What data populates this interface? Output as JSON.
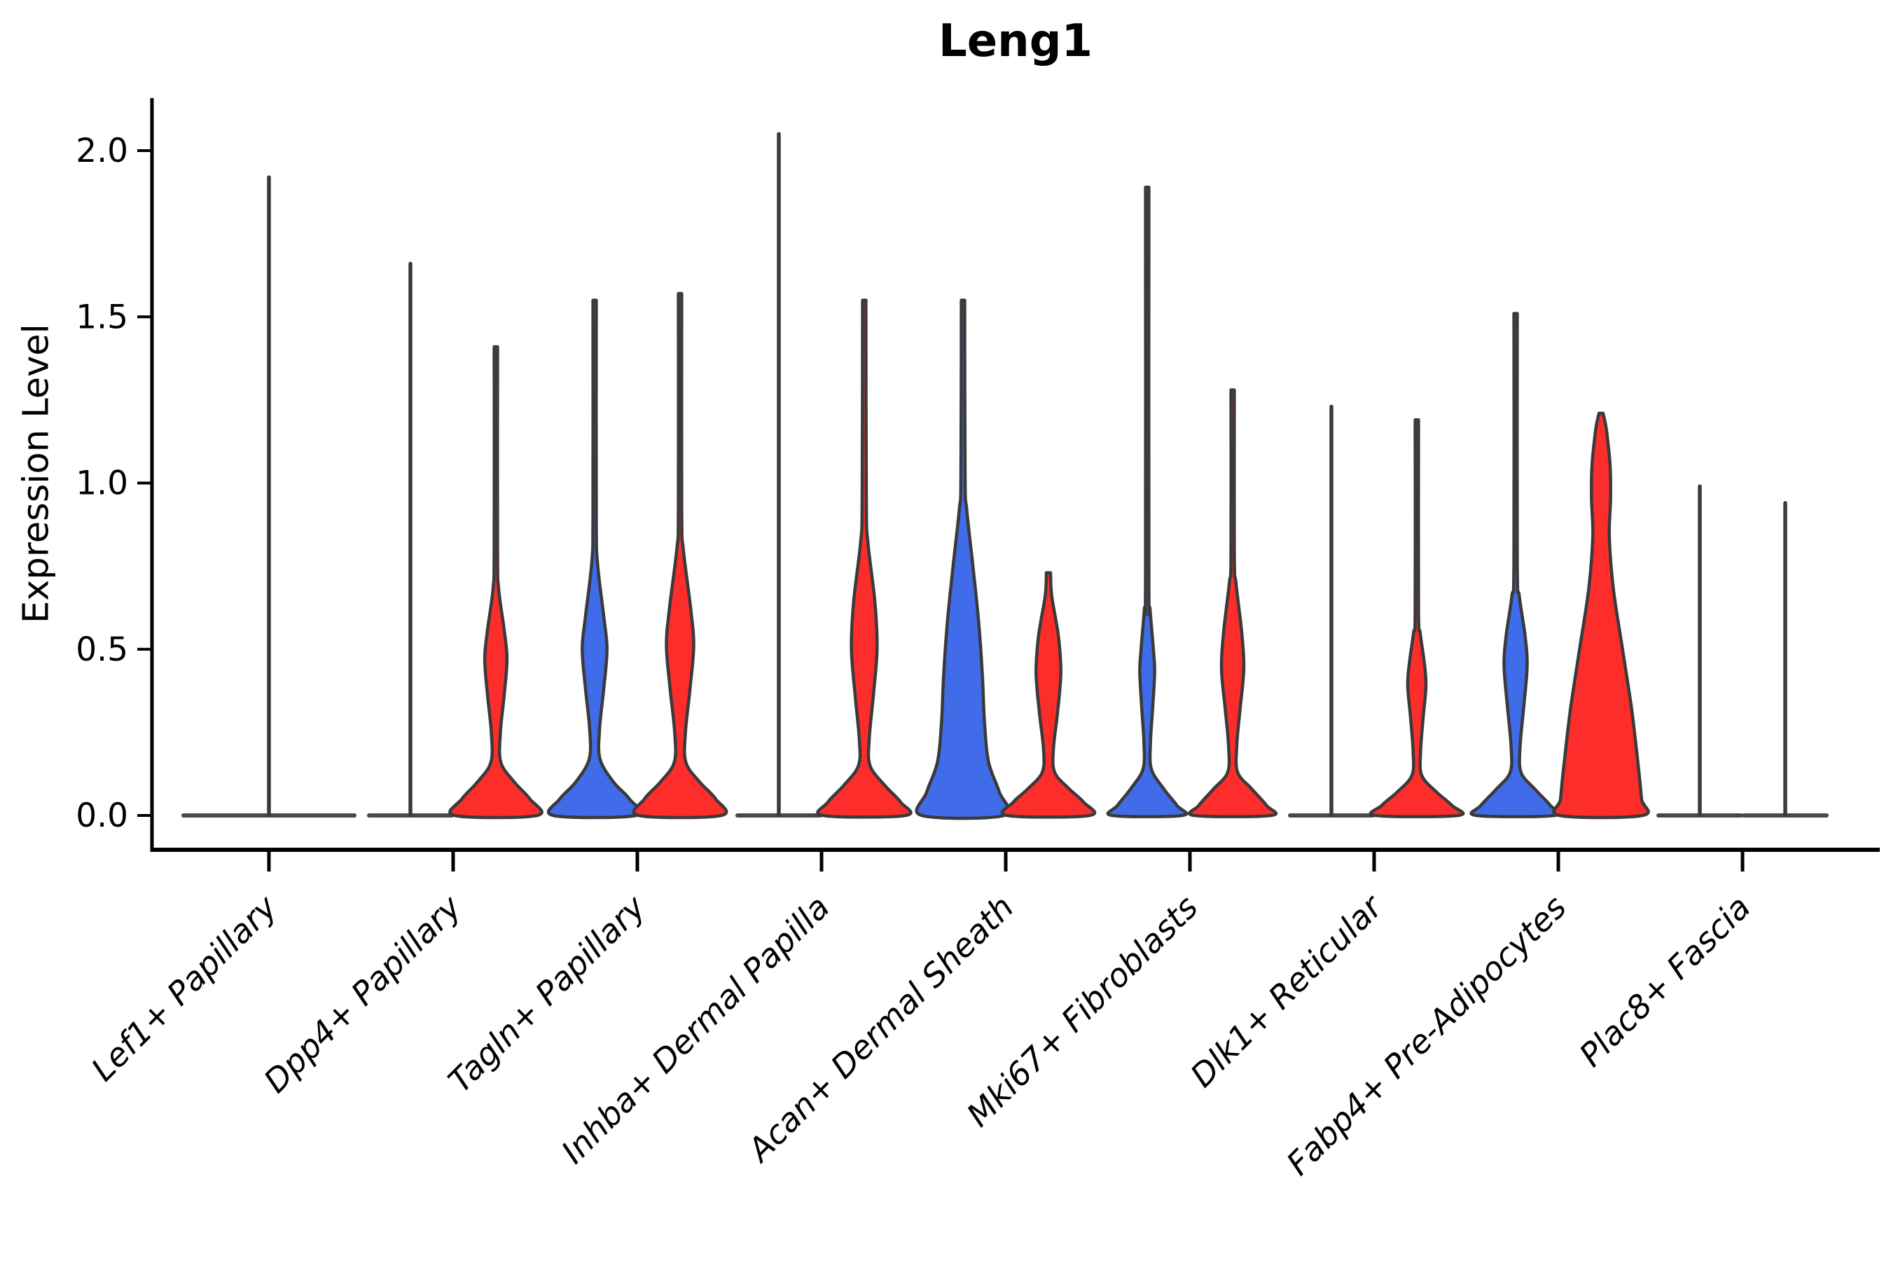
{
  "title": "Leng1",
  "ylabel": "Expression Level",
  "colors": {
    "background": "#ffffff",
    "axis": "#000000",
    "violin_edge": "#3a3a3a",
    "flat_line": "#484848",
    "blue": "#406CE9",
    "red": "#FD2D2B"
  },
  "chart_data": {
    "type": "violin",
    "title": "Leng1",
    "xlabel": "",
    "ylabel": "Expression Level",
    "ylim": [
      -0.1,
      2.1
    ],
    "yticks": [
      0.0,
      0.5,
      1.0,
      1.5,
      2.0
    ],
    "ytick_labels": [
      "0.0",
      "0.5",
      "1.0",
      "1.5",
      "2.0"
    ],
    "grid": false,
    "legend": "none",
    "categories": [
      "Lef1+ Papillary",
      "Dpp4+ Papillary",
      "Tagln+ Papillary",
      "Inhba+ Dermal Papilla",
      "Acan+ Dermal Sheath",
      "Mki67+ Fibroblasts",
      "Dlk1+ Reticular",
      "Fabp4+ Pre-Adipocytes",
      "Plac8+ Fascia"
    ],
    "hue_sides": [
      "left",
      "right"
    ],
    "hue_colors": {
      "left": "#406CE9",
      "right": "#FD2D2B"
    },
    "violins": [
      {
        "category_index": 0,
        "side": "single",
        "color": null,
        "shape": "flat",
        "spike_top": 1.92
      },
      {
        "category_index": 1,
        "side": "left",
        "color": "blue",
        "shape": "flat",
        "spike_top": 1.66
      },
      {
        "category_index": 1,
        "side": "right",
        "color": "red",
        "shape": "body",
        "spike_top": 1.41,
        "profile": [
          [
            1.41,
            0.04
          ],
          [
            0.8,
            0.04
          ],
          [
            0.68,
            0.07
          ],
          [
            0.56,
            0.2
          ],
          [
            0.47,
            0.27
          ],
          [
            0.36,
            0.2
          ],
          [
            0.25,
            0.11
          ],
          [
            0.16,
            0.12
          ],
          [
            0.1,
            0.45
          ],
          [
            0.05,
            0.82
          ],
          [
            0.0,
            1.0
          ]
        ]
      },
      {
        "category_index": 2,
        "side": "left",
        "color": "blue",
        "shape": "body",
        "spike_top": 1.55,
        "profile": [
          [
            1.55,
            0.04
          ],
          [
            0.9,
            0.04
          ],
          [
            0.76,
            0.07
          ],
          [
            0.6,
            0.22
          ],
          [
            0.5,
            0.3
          ],
          [
            0.38,
            0.22
          ],
          [
            0.26,
            0.12
          ],
          [
            0.17,
            0.13
          ],
          [
            0.1,
            0.46
          ],
          [
            0.05,
            0.84
          ],
          [
            0.0,
            1.0
          ]
        ]
      },
      {
        "category_index": 2,
        "side": "right",
        "color": "red",
        "shape": "body",
        "spike_top": 1.57,
        "profile": [
          [
            1.57,
            0.04
          ],
          [
            0.92,
            0.04
          ],
          [
            0.8,
            0.08
          ],
          [
            0.62,
            0.26
          ],
          [
            0.51,
            0.33
          ],
          [
            0.38,
            0.24
          ],
          [
            0.25,
            0.13
          ],
          [
            0.16,
            0.14
          ],
          [
            0.1,
            0.48
          ],
          [
            0.05,
            0.86
          ],
          [
            0.0,
            1.0
          ]
        ]
      },
      {
        "category_index": 3,
        "side": "left",
        "color": "blue",
        "shape": "flat",
        "spike_top": 2.05
      },
      {
        "category_index": 3,
        "side": "right",
        "color": "red",
        "shape": "body",
        "spike_top": 1.55,
        "profile": [
          [
            1.55,
            0.04
          ],
          [
            0.95,
            0.05
          ],
          [
            0.82,
            0.09
          ],
          [
            0.64,
            0.26
          ],
          [
            0.5,
            0.31
          ],
          [
            0.36,
            0.22
          ],
          [
            0.23,
            0.12
          ],
          [
            0.15,
            0.14
          ],
          [
            0.09,
            0.5
          ],
          [
            0.04,
            0.88
          ],
          [
            0.0,
            1.0
          ]
        ]
      },
      {
        "category_index": 4,
        "side": "left",
        "color": "blue",
        "shape": "body",
        "spike_top": 1.55,
        "profile": [
          [
            1.55,
            0.04
          ],
          [
            1.02,
            0.05
          ],
          [
            0.92,
            0.09
          ],
          [
            0.75,
            0.24
          ],
          [
            0.58,
            0.38
          ],
          [
            0.42,
            0.47
          ],
          [
            0.28,
            0.52
          ],
          [
            0.16,
            0.62
          ],
          [
            0.07,
            0.88
          ],
          [
            0.0,
            1.0
          ]
        ]
      },
      {
        "category_index": 4,
        "side": "right",
        "color": "red",
        "shape": "body",
        "spike_top": 0.73,
        "profile": [
          [
            0.73,
            0.05
          ],
          [
            0.66,
            0.08
          ],
          [
            0.54,
            0.24
          ],
          [
            0.43,
            0.3
          ],
          [
            0.31,
            0.22
          ],
          [
            0.2,
            0.12
          ],
          [
            0.13,
            0.15
          ],
          [
            0.08,
            0.5
          ],
          [
            0.04,
            0.85
          ],
          [
            0.0,
            1.0
          ]
        ]
      },
      {
        "category_index": 5,
        "side": "left",
        "color": "blue",
        "shape": "body",
        "spike_top": 1.89,
        "profile": [
          [
            1.89,
            0.04
          ],
          [
            0.72,
            0.04
          ],
          [
            0.62,
            0.07
          ],
          [
            0.5,
            0.15
          ],
          [
            0.43,
            0.18
          ],
          [
            0.32,
            0.13
          ],
          [
            0.22,
            0.08
          ],
          [
            0.14,
            0.1
          ],
          [
            0.08,
            0.4
          ],
          [
            0.03,
            0.72
          ],
          [
            0.0,
            0.85
          ]
        ]
      },
      {
        "category_index": 5,
        "side": "right",
        "color": "red",
        "shape": "body",
        "spike_top": 1.28,
        "profile": [
          [
            1.28,
            0.04
          ],
          [
            0.78,
            0.04
          ],
          [
            0.7,
            0.08
          ],
          [
            0.55,
            0.22
          ],
          [
            0.44,
            0.27
          ],
          [
            0.32,
            0.18
          ],
          [
            0.21,
            0.1
          ],
          [
            0.13,
            0.12
          ],
          [
            0.08,
            0.46
          ],
          [
            0.03,
            0.82
          ],
          [
            0.0,
            0.93
          ]
        ]
      },
      {
        "category_index": 6,
        "side": "left",
        "color": "blue",
        "shape": "flat",
        "spike_top": 1.23
      },
      {
        "category_index": 6,
        "side": "right",
        "color": "red",
        "shape": "body",
        "spike_top": 1.19,
        "profile": [
          [
            1.19,
            0.04
          ],
          [
            0.62,
            0.04
          ],
          [
            0.55,
            0.08
          ],
          [
            0.46,
            0.18
          ],
          [
            0.39,
            0.22
          ],
          [
            0.29,
            0.15
          ],
          [
            0.19,
            0.09
          ],
          [
            0.12,
            0.12
          ],
          [
            0.07,
            0.48
          ],
          [
            0.03,
            0.85
          ],
          [
            0.0,
            1.0
          ]
        ]
      },
      {
        "category_index": 7,
        "side": "left",
        "color": "blue",
        "shape": "body",
        "spike_top": 1.51,
        "profile": [
          [
            1.51,
            0.04
          ],
          [
            0.76,
            0.04
          ],
          [
            0.66,
            0.09
          ],
          [
            0.54,
            0.23
          ],
          [
            0.45,
            0.28
          ],
          [
            0.33,
            0.2
          ],
          [
            0.21,
            0.11
          ],
          [
            0.13,
            0.13
          ],
          [
            0.08,
            0.46
          ],
          [
            0.03,
            0.84
          ],
          [
            0.0,
            0.95
          ]
        ]
      },
      {
        "category_index": 7,
        "side": "right",
        "color": "red",
        "shape": "body",
        "spike_top": 1.21,
        "profile": [
          [
            1.21,
            0.05
          ],
          [
            1.16,
            0.13
          ],
          [
            1.05,
            0.22
          ],
          [
            0.95,
            0.23
          ],
          [
            0.84,
            0.2
          ],
          [
            0.68,
            0.3
          ],
          [
            0.5,
            0.52
          ],
          [
            0.32,
            0.74
          ],
          [
            0.15,
            0.9
          ],
          [
            0.05,
            0.98
          ],
          [
            0.0,
            1.0
          ]
        ]
      },
      {
        "category_index": 8,
        "side": "left",
        "color": "blue",
        "shape": "flat",
        "spike_top": 0.99
      },
      {
        "category_index": 8,
        "side": "right",
        "color": "red",
        "shape": "flat",
        "spike_top": 0.94
      }
    ]
  }
}
